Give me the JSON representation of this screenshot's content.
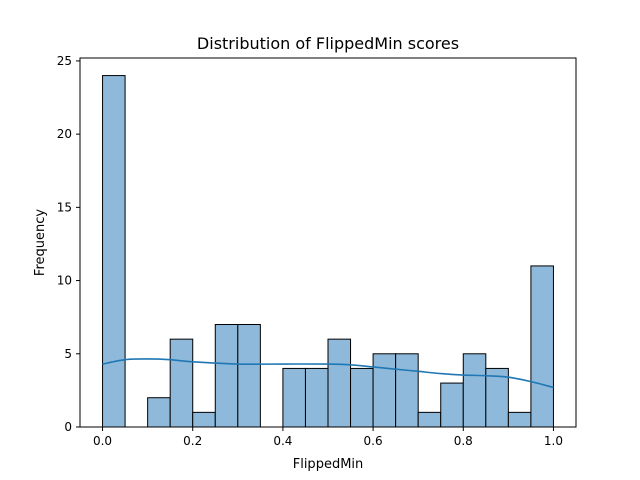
{
  "chart_data": {
    "type": "bar",
    "title": "Distribution of FlippedMin scores",
    "xlabel": "FlippedMin",
    "ylabel": "Frequency",
    "xlim": [
      -0.05,
      1.05
    ],
    "ylim": [
      0,
      25.2
    ],
    "x_ticks": [
      0.0,
      0.2,
      0.4,
      0.6,
      0.8,
      1.0
    ],
    "x_tick_labels": [
      "0.0",
      "0.2",
      "0.4",
      "0.6",
      "0.8",
      "1.0"
    ],
    "y_ticks": [
      0,
      5,
      10,
      15,
      20,
      25
    ],
    "y_tick_labels": [
      "0",
      "5",
      "10",
      "15",
      "20",
      "25"
    ],
    "bin_edges": [
      0.0,
      0.05,
      0.1,
      0.15,
      0.2,
      0.25,
      0.3,
      0.35,
      0.4,
      0.45,
      0.5,
      0.55,
      0.6,
      0.65,
      0.7,
      0.75,
      0.8,
      0.85,
      0.9,
      0.95,
      1.0
    ],
    "values": [
      24,
      0,
      2,
      6,
      1,
      7,
      7,
      0,
      4,
      4,
      6,
      4,
      5,
      5,
      1,
      3,
      5,
      4,
      1,
      11
    ],
    "kde": {
      "x": [
        0.0,
        0.05,
        0.1,
        0.15,
        0.2,
        0.3,
        0.4,
        0.5,
        0.55,
        0.6,
        0.65,
        0.7,
        0.75,
        0.8,
        0.85,
        0.9,
        0.95,
        1.0
      ],
      "y": [
        4.3,
        4.6,
        4.65,
        4.6,
        4.45,
        4.3,
        4.3,
        4.3,
        4.25,
        4.1,
        3.95,
        3.8,
        3.65,
        3.55,
        3.5,
        3.4,
        3.1,
        2.7
      ]
    },
    "colors": {
      "bar_fill": "#8fb9da",
      "bar_edge": "#000000",
      "kde_line": "#1f77b4"
    },
    "grid": false
  }
}
